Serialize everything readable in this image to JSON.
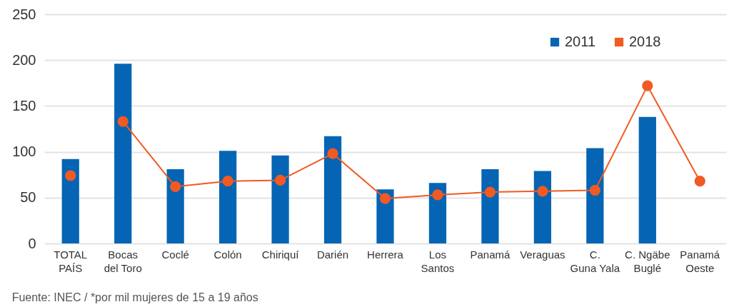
{
  "chart_data": {
    "type": "bar",
    "categories": [
      "TOTAL PAÍS",
      "Bocas del Toro",
      "Coclé",
      "Colón",
      "Chiriquí",
      "Darién",
      "Herrera",
      "Los Santos",
      "Panamá",
      "Veraguas",
      "C. Guna Yala",
      "C. Ngäbe Buglé",
      "Panamá Oeste"
    ],
    "series": [
      {
        "name": "2011",
        "color": "#0565b4",
        "values": [
          92,
          196,
          81,
          101,
          96,
          117,
          59,
          66,
          81,
          79,
          104,
          138,
          null
        ]
      },
      {
        "name": "2018",
        "type": "line",
        "color": "#f15a22",
        "values": [
          null,
          133,
          62,
          68,
          69,
          98,
          49,
          53,
          56,
          57,
          58,
          172,
          68
        ]
      },
      {
        "type": "scatter",
        "color": "#f15a22",
        "values": [
          74,
          null,
          null,
          null,
          null,
          null,
          null,
          null,
          null,
          null,
          null,
          null,
          null
        ]
      }
    ],
    "ylim": [
      0,
      250
    ],
    "yticks": [
      0,
      50,
      100,
      150,
      200,
      250
    ],
    "grid": "y",
    "legend": "top right",
    "marker": "circle",
    "annotations": [
      "Fuente: INEC / *por mil mujeres de 15 a 19 años"
    ]
  }
}
